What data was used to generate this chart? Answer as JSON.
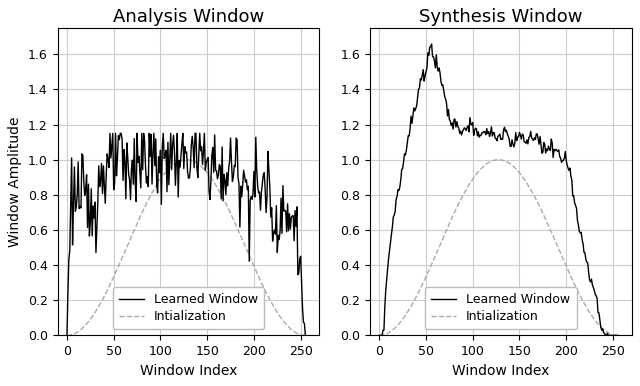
{
  "title_left": "Analysis Window",
  "title_right": "Synthesis Window",
  "ylabel": "Window Amplitude",
  "xlabel": "Window Index",
  "ylim": [
    0.0,
    1.75
  ],
  "yticks": [
    0.0,
    0.2,
    0.4,
    0.6,
    0.8,
    1.0,
    1.2,
    1.4,
    1.6
  ],
  "xlim": [
    -10,
    270
  ],
  "xticks": [
    0,
    50,
    100,
    150,
    200,
    250
  ],
  "n_points": 256,
  "legend_learned": "Learned Window",
  "legend_init": "Intialization",
  "learned_color": "#000000",
  "init_color": "#aaaaaa",
  "init_linestyle": "--",
  "learned_linewidth": 1.0,
  "init_linewidth": 1.0,
  "title_fontsize": 13,
  "label_fontsize": 10,
  "tick_fontsize": 9,
  "legend_fontsize": 9,
  "background_color": "#ffffff",
  "grid_color": "#cccccc",
  "figsize": [
    6.4,
    3.86
  ],
  "dpi": 100
}
